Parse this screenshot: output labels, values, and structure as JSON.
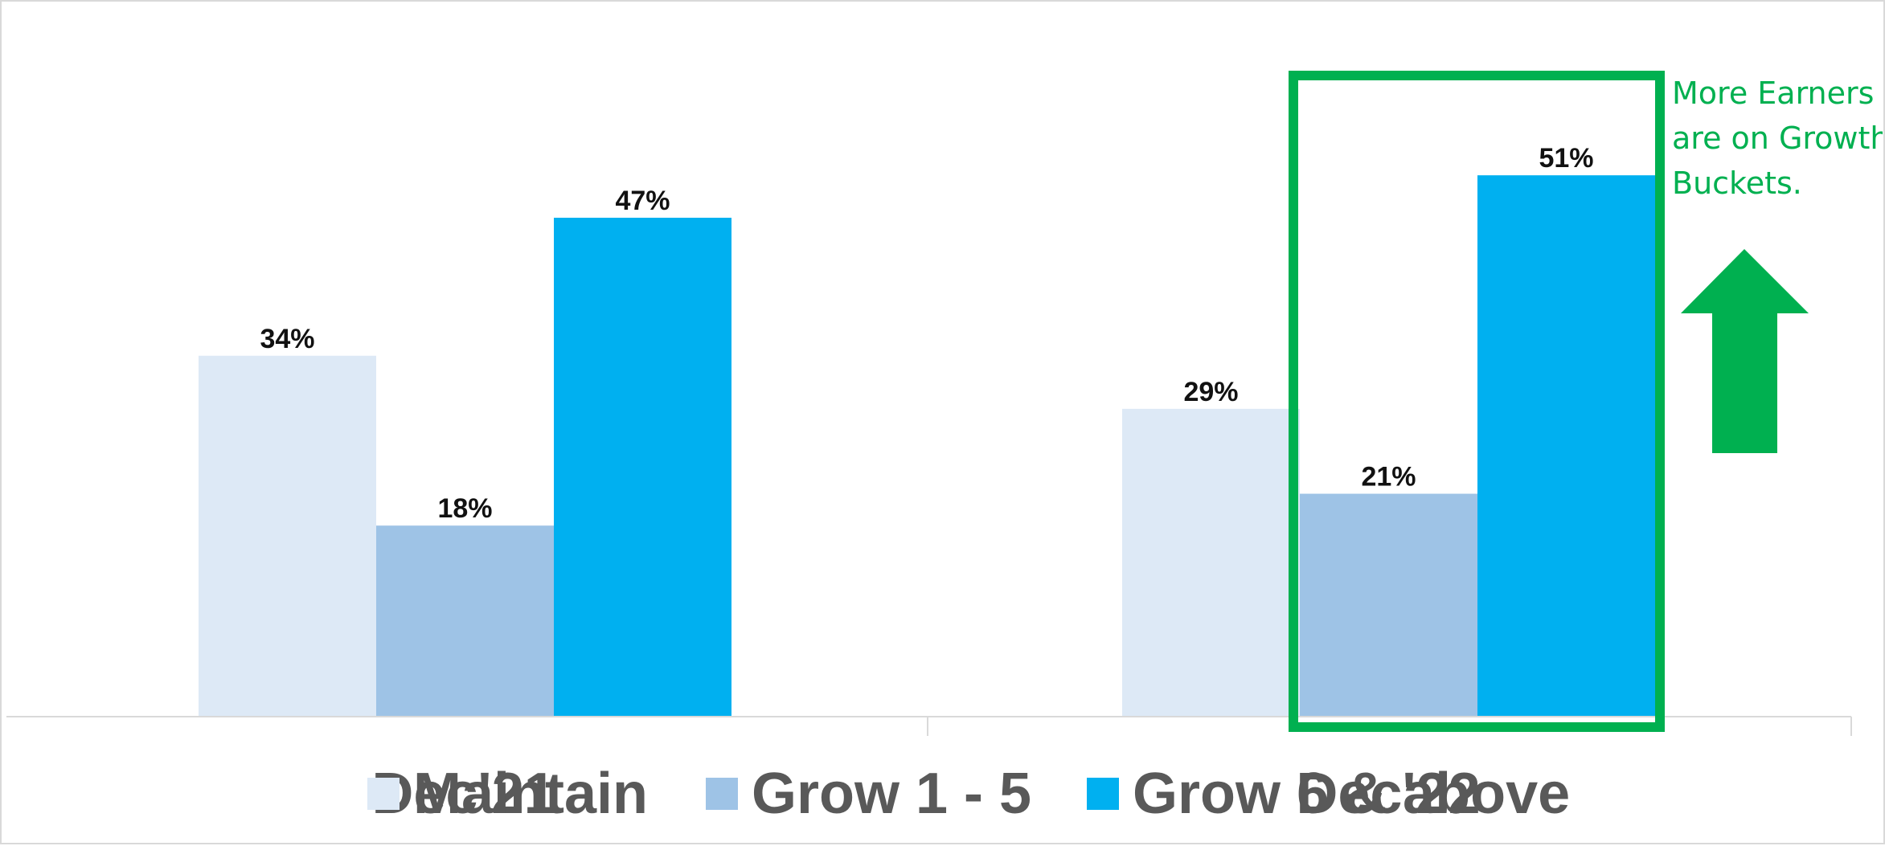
{
  "chart_data": {
    "type": "bar",
    "categories": [
      "Dec'21",
      "Dec'22"
    ],
    "series": [
      {
        "name": "Maintain",
        "values": [
          34,
          29
        ],
        "color": "#dde9f6"
      },
      {
        "name": "Grow 1 - 5",
        "values": [
          18,
          21
        ],
        "color": "#9ec3e6"
      },
      {
        "name": "Grow 6 & above",
        "values": [
          47,
          51
        ],
        "color": "#00b0f0"
      }
    ],
    "value_suffix": "%",
    "ylim": [
      0,
      66
    ],
    "grid": false,
    "legend_position": "bottom",
    "title": "",
    "xlabel": "",
    "ylabel": "",
    "highlight": {
      "category_index": 1,
      "series": [
        "Grow 1 - 5",
        "Grow 6 & above"
      ],
      "color": "#00b050"
    },
    "annotation": {
      "lines": [
        "More Earners",
        "are on Growth",
        "Buckets."
      ],
      "color": "#00b050",
      "arrow": "up-arrow-icon"
    }
  }
}
